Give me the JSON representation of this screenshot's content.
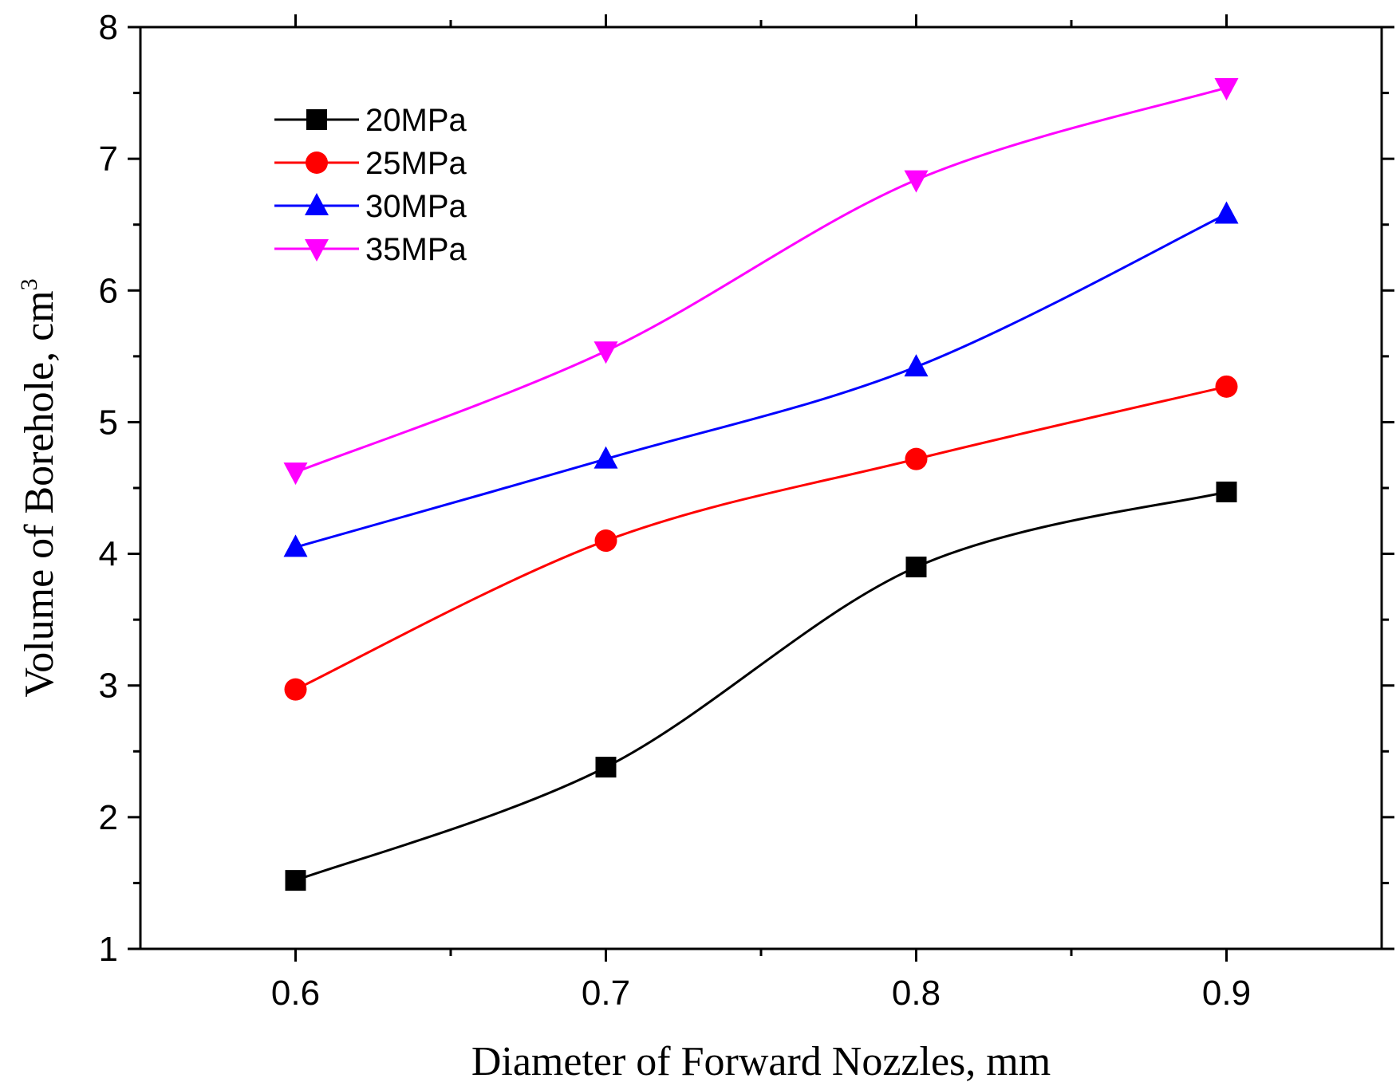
{
  "chart_data": {
    "type": "line",
    "title": "",
    "xlabel": "Diameter of Forward Nozzles, mm",
    "ylabel": "Volume of Borehole, cm",
    "ylabel_superscript": "3",
    "x": [
      0.6,
      0.7,
      0.8,
      0.9
    ],
    "xticks": [
      "0.6",
      "0.7",
      "0.8",
      "0.9"
    ],
    "yticks": [
      "1",
      "2",
      "3",
      "4",
      "5",
      "6",
      "7",
      "8"
    ],
    "xlim": [
      0.55,
      0.95
    ],
    "ylim": [
      1,
      8
    ],
    "grid": false,
    "legend_position": "top-left",
    "series": [
      {
        "name": "20MPa",
        "values": [
          1.52,
          2.38,
          3.9,
          4.47
        ],
        "color": "#000000",
        "marker": "square"
      },
      {
        "name": "25MPa",
        "values": [
          2.97,
          4.1,
          4.72,
          5.27
        ],
        "color": "#ff0000",
        "marker": "circle"
      },
      {
        "name": "30MPa",
        "values": [
          4.05,
          4.72,
          5.42,
          6.58
        ],
        "color": "#0000ff",
        "marker": "triangle-up"
      },
      {
        "name": "35MPa",
        "values": [
          4.62,
          5.54,
          6.84,
          7.54
        ],
        "color": "#ff00ff",
        "marker": "triangle-down"
      }
    ]
  }
}
